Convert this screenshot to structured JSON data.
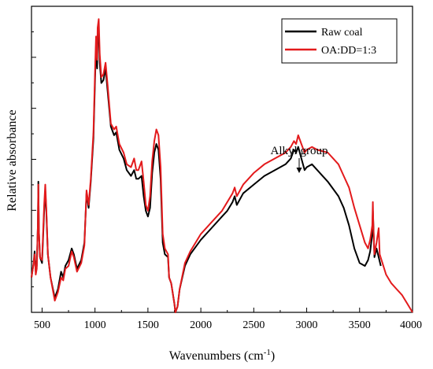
{
  "chart_data": {
    "type": "line",
    "title": "",
    "xlabel_main": "Wavenumbers (cm",
    "xlabel_sup": "-1",
    "xlabel_end": ")",
    "ylabel": "Relative absorbance",
    "xlim": [
      400,
      4000
    ],
    "ylim": [
      0,
      100
    ],
    "xticks": [
      500,
      1000,
      1500,
      2000,
      2500,
      3000,
      3500,
      4000
    ],
    "yticks_labeled": false,
    "grid": false,
    "legend_position": "top-right",
    "annotation": {
      "text": "Alkyl group",
      "x": 2920
    },
    "series": [
      {
        "name": "Raw coal",
        "color": "#000000",
        "points": [
          [
            400,
            12
          ],
          [
            420,
            17
          ],
          [
            430,
            21
          ],
          [
            440,
            14
          ],
          [
            450,
            16
          ],
          [
            460,
            30
          ],
          [
            465,
            45
          ],
          [
            470,
            28
          ],
          [
            480,
            19
          ],
          [
            500,
            17
          ],
          [
            520,
            35
          ],
          [
            530,
            42
          ],
          [
            540,
            35
          ],
          [
            555,
            20
          ],
          [
            580,
            12
          ],
          [
            620,
            5
          ],
          [
            650,
            8
          ],
          [
            680,
            14
          ],
          [
            700,
            12
          ],
          [
            720,
            16
          ],
          [
            750,
            18
          ],
          [
            780,
            22
          ],
          [
            800,
            20
          ],
          [
            830,
            15
          ],
          [
            870,
            18
          ],
          [
            900,
            24
          ],
          [
            920,
            41
          ],
          [
            940,
            36
          ],
          [
            960,
            45
          ],
          [
            985,
            60
          ],
          [
            1000,
            80
          ],
          [
            1010,
            92
          ],
          [
            1020,
            84
          ],
          [
            1025,
            94
          ],
          [
            1035,
            97
          ],
          [
            1045,
            86
          ],
          [
            1060,
            79
          ],
          [
            1080,
            80
          ],
          [
            1100,
            84
          ],
          [
            1120,
            76
          ],
          [
            1150,
            64
          ],
          [
            1180,
            61
          ],
          [
            1200,
            62
          ],
          [
            1230,
            56
          ],
          [
            1270,
            53
          ],
          [
            1300,
            49
          ],
          [
            1340,
            47
          ],
          [
            1370,
            49
          ],
          [
            1390,
            46
          ],
          [
            1410,
            46
          ],
          [
            1440,
            47
          ],
          [
            1460,
            40
          ],
          [
            1480,
            35
          ],
          [
            1500,
            33
          ],
          [
            1520,
            36
          ],
          [
            1540,
            48
          ],
          [
            1560,
            55
          ],
          [
            1580,
            58
          ],
          [
            1600,
            56
          ],
          [
            1620,
            46
          ],
          [
            1640,
            24
          ],
          [
            1660,
            20
          ],
          [
            1690,
            19
          ],
          [
            1700,
            12
          ],
          [
            1720,
            10
          ],
          [
            1750,
            3
          ],
          [
            1760,
            0
          ],
          [
            1780,
            2
          ],
          [
            1800,
            8
          ],
          [
            1850,
            16
          ],
          [
            1900,
            20
          ],
          [
            2000,
            25
          ],
          [
            2100,
            29
          ],
          [
            2200,
            33
          ],
          [
            2250,
            35
          ],
          [
            2300,
            38
          ],
          [
            2320,
            40
          ],
          [
            2340,
            37
          ],
          [
            2400,
            41
          ],
          [
            2500,
            44
          ],
          [
            2600,
            47
          ],
          [
            2700,
            49
          ],
          [
            2800,
            51
          ],
          [
            2850,
            53
          ],
          [
            2880,
            56
          ],
          [
            2900,
            55
          ],
          [
            2920,
            57
          ],
          [
            2950,
            53
          ],
          [
            2980,
            49
          ],
          [
            3000,
            50
          ],
          [
            3050,
            51
          ],
          [
            3100,
            49
          ],
          [
            3200,
            45
          ],
          [
            3300,
            40
          ],
          [
            3350,
            36
          ],
          [
            3400,
            30
          ],
          [
            3450,
            22
          ],
          [
            3500,
            17
          ],
          [
            3550,
            16
          ],
          [
            3580,
            18
          ],
          [
            3600,
            21
          ],
          [
            3620,
            27
          ],
          [
            3625,
            35
          ],
          [
            3630,
            30
          ],
          [
            3640,
            19
          ],
          [
            3660,
            22
          ],
          [
            3680,
            19
          ],
          [
            3700,
            16
          ]
        ]
      },
      {
        "name": "OA:DD=1:3",
        "color": "#e31a1c",
        "points": [
          [
            400,
            12
          ],
          [
            420,
            17
          ],
          [
            430,
            20
          ],
          [
            440,
            13
          ],
          [
            450,
            15
          ],
          [
            460,
            30
          ],
          [
            465,
            44
          ],
          [
            470,
            28
          ],
          [
            480,
            19
          ],
          [
            500,
            18
          ],
          [
            520,
            37
          ],
          [
            530,
            44
          ],
          [
            540,
            36
          ],
          [
            555,
            20
          ],
          [
            580,
            12
          ],
          [
            620,
            4
          ],
          [
            650,
            7
          ],
          [
            680,
            12
          ],
          [
            700,
            11
          ],
          [
            720,
            15
          ],
          [
            750,
            16
          ],
          [
            780,
            21
          ],
          [
            800,
            19
          ],
          [
            830,
            14
          ],
          [
            870,
            17
          ],
          [
            900,
            23
          ],
          [
            920,
            42
          ],
          [
            940,
            37
          ],
          [
            960,
            46
          ],
          [
            985,
            62
          ],
          [
            1000,
            83
          ],
          [
            1010,
            95
          ],
          [
            1020,
            87
          ],
          [
            1025,
            98
          ],
          [
            1035,
            101
          ],
          [
            1045,
            89
          ],
          [
            1060,
            81
          ],
          [
            1080,
            82
          ],
          [
            1100,
            86
          ],
          [
            1120,
            78
          ],
          [
            1150,
            65
          ],
          [
            1180,
            63
          ],
          [
            1200,
            64
          ],
          [
            1230,
            58
          ],
          [
            1270,
            55
          ],
          [
            1300,
            51
          ],
          [
            1340,
            50
          ],
          [
            1370,
            53
          ],
          [
            1390,
            49
          ],
          [
            1410,
            49
          ],
          [
            1440,
            52
          ],
          [
            1460,
            45
          ],
          [
            1480,
            37
          ],
          [
            1500,
            35
          ],
          [
            1520,
            40
          ],
          [
            1540,
            52
          ],
          [
            1560,
            59
          ],
          [
            1580,
            63
          ],
          [
            1600,
            61
          ],
          [
            1620,
            50
          ],
          [
            1640,
            27
          ],
          [
            1660,
            22
          ],
          [
            1690,
            20
          ],
          [
            1700,
            12
          ],
          [
            1720,
            10
          ],
          [
            1750,
            3
          ],
          [
            1760,
            0
          ],
          [
            1780,
            2
          ],
          [
            1800,
            8
          ],
          [
            1850,
            17
          ],
          [
            1900,
            21
          ],
          [
            2000,
            27
          ],
          [
            2100,
            31
          ],
          [
            2200,
            35
          ],
          [
            2250,
            38
          ],
          [
            2300,
            41
          ],
          [
            2320,
            43
          ],
          [
            2340,
            40
          ],
          [
            2400,
            44
          ],
          [
            2500,
            48
          ],
          [
            2600,
            51
          ],
          [
            2700,
            53
          ],
          [
            2800,
            55
          ],
          [
            2850,
            57
          ],
          [
            2880,
            59
          ],
          [
            2900,
            58
          ],
          [
            2920,
            61
          ],
          [
            2950,
            58
          ],
          [
            2980,
            55
          ],
          [
            3000,
            56
          ],
          [
            3050,
            57
          ],
          [
            3100,
            56
          ],
          [
            3200,
            55
          ],
          [
            3300,
            51
          ],
          [
            3350,
            47
          ],
          [
            3400,
            43
          ],
          [
            3450,
            36
          ],
          [
            3500,
            30
          ],
          [
            3550,
            24
          ],
          [
            3580,
            22
          ],
          [
            3600,
            25
          ],
          [
            3620,
            30
          ],
          [
            3625,
            38
          ],
          [
            3630,
            29
          ],
          [
            3640,
            20
          ],
          [
            3660,
            24
          ],
          [
            3680,
            29
          ],
          [
            3690,
            20
          ],
          [
            3750,
            13
          ],
          [
            3800,
            10
          ],
          [
            3850,
            8
          ],
          [
            3900,
            6
          ],
          [
            3950,
            3
          ],
          [
            4000,
            0
          ]
        ]
      }
    ]
  }
}
